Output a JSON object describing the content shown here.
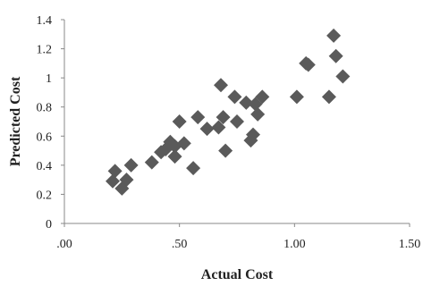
{
  "chart_data": {
    "type": "scatter",
    "xlabel": "Actual Cost",
    "ylabel": "Predicted Cost",
    "xlim": [
      0,
      1.5
    ],
    "ylim": [
      0,
      1.4
    ],
    "x_ticks": [
      0,
      0.5,
      1.0,
      1.5
    ],
    "x_tick_labels": [
      ".00",
      ".50",
      "1.00",
      "1.50"
    ],
    "y_ticks": [
      0,
      0.2,
      0.4,
      0.6,
      0.8,
      1.0,
      1.2,
      1.4
    ],
    "y_tick_labels": [
      "0",
      "0.2",
      "0.4",
      "0.6",
      "0.8",
      "1",
      "1.2",
      "1.4"
    ],
    "grid": false,
    "marker": "diamond",
    "marker_color": "#5a5a5a",
    "points": [
      {
        "x": 0.21,
        "y": 0.29
      },
      {
        "x": 0.22,
        "y": 0.36
      },
      {
        "x": 0.25,
        "y": 0.24
      },
      {
        "x": 0.27,
        "y": 0.3
      },
      {
        "x": 0.29,
        "y": 0.4
      },
      {
        "x": 0.38,
        "y": 0.42
      },
      {
        "x": 0.42,
        "y": 0.49
      },
      {
        "x": 0.44,
        "y": 0.51
      },
      {
        "x": 0.46,
        "y": 0.56
      },
      {
        "x": 0.48,
        "y": 0.46
      },
      {
        "x": 0.48,
        "y": 0.53
      },
      {
        "x": 0.5,
        "y": 0.7
      },
      {
        "x": 0.52,
        "y": 0.55
      },
      {
        "x": 0.56,
        "y": 0.38
      },
      {
        "x": 0.58,
        "y": 0.73
      },
      {
        "x": 0.62,
        "y": 0.65
      },
      {
        "x": 0.67,
        "y": 0.66
      },
      {
        "x": 0.68,
        "y": 0.95
      },
      {
        "x": 0.69,
        "y": 0.73
      },
      {
        "x": 0.7,
        "y": 0.5
      },
      {
        "x": 0.74,
        "y": 0.87
      },
      {
        "x": 0.75,
        "y": 0.7
      },
      {
        "x": 0.79,
        "y": 0.83
      },
      {
        "x": 0.81,
        "y": 0.57
      },
      {
        "x": 0.82,
        "y": 0.61
      },
      {
        "x": 0.83,
        "y": 0.82
      },
      {
        "x": 0.84,
        "y": 0.75
      },
      {
        "x": 0.86,
        "y": 0.87
      },
      {
        "x": 1.01,
        "y": 0.87
      },
      {
        "x": 1.05,
        "y": 1.1
      },
      {
        "x": 1.06,
        "y": 1.09
      },
      {
        "x": 1.15,
        "y": 0.87
      },
      {
        "x": 1.17,
        "y": 1.29
      },
      {
        "x": 1.18,
        "y": 1.15
      },
      {
        "x": 1.21,
        "y": 1.01
      }
    ]
  }
}
